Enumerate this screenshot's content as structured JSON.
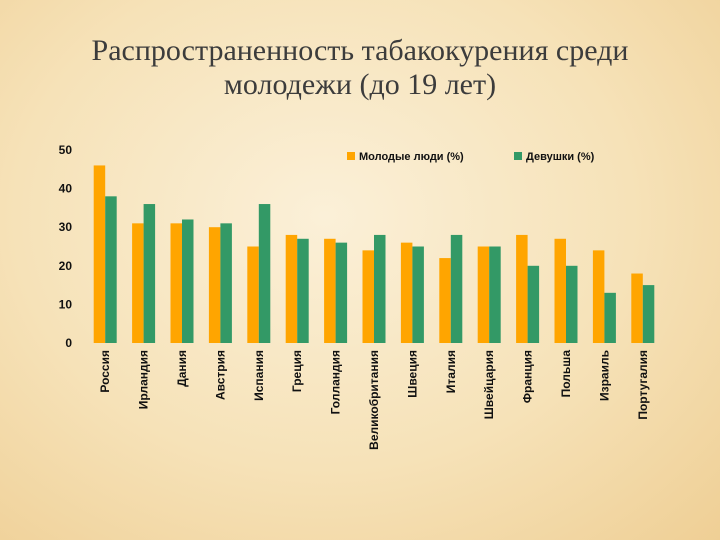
{
  "chart_data": {
    "type": "bar",
    "title": "Распространенность табакокурения среди молодежи (до 19 лет)",
    "title_lines": [
      "Распространенность табакокурения среди",
      "молодежи (до 19 лет)"
    ],
    "categories": [
      "Россия",
      "Ирландия",
      "Дания",
      "Австрия",
      "Испания",
      "Греция",
      "Голландия",
      "Великобритания",
      "Швеция",
      "Италия",
      "Швейцария",
      "Франция",
      "Польша",
      "Израиль",
      "Португалия"
    ],
    "series": [
      {
        "name": "Молодые люди (%)",
        "color": "#ffa500",
        "values": [
          46,
          31,
          31,
          30,
          25,
          28,
          27,
          24,
          26,
          22,
          25,
          28,
          27,
          24,
          18
        ]
      },
      {
        "name": "Девушки (%)",
        "color": "#339966",
        "values": [
          38,
          36,
          32,
          31,
          36,
          27,
          26,
          28,
          25,
          28,
          25,
          20,
          20,
          13,
          15
        ]
      }
    ],
    "ylim": [
      0,
      50
    ],
    "yticks": [
      "0",
      "10",
      "20",
      "30",
      "40",
      "50"
    ],
    "grid": false,
    "legend_position": "top-right"
  }
}
